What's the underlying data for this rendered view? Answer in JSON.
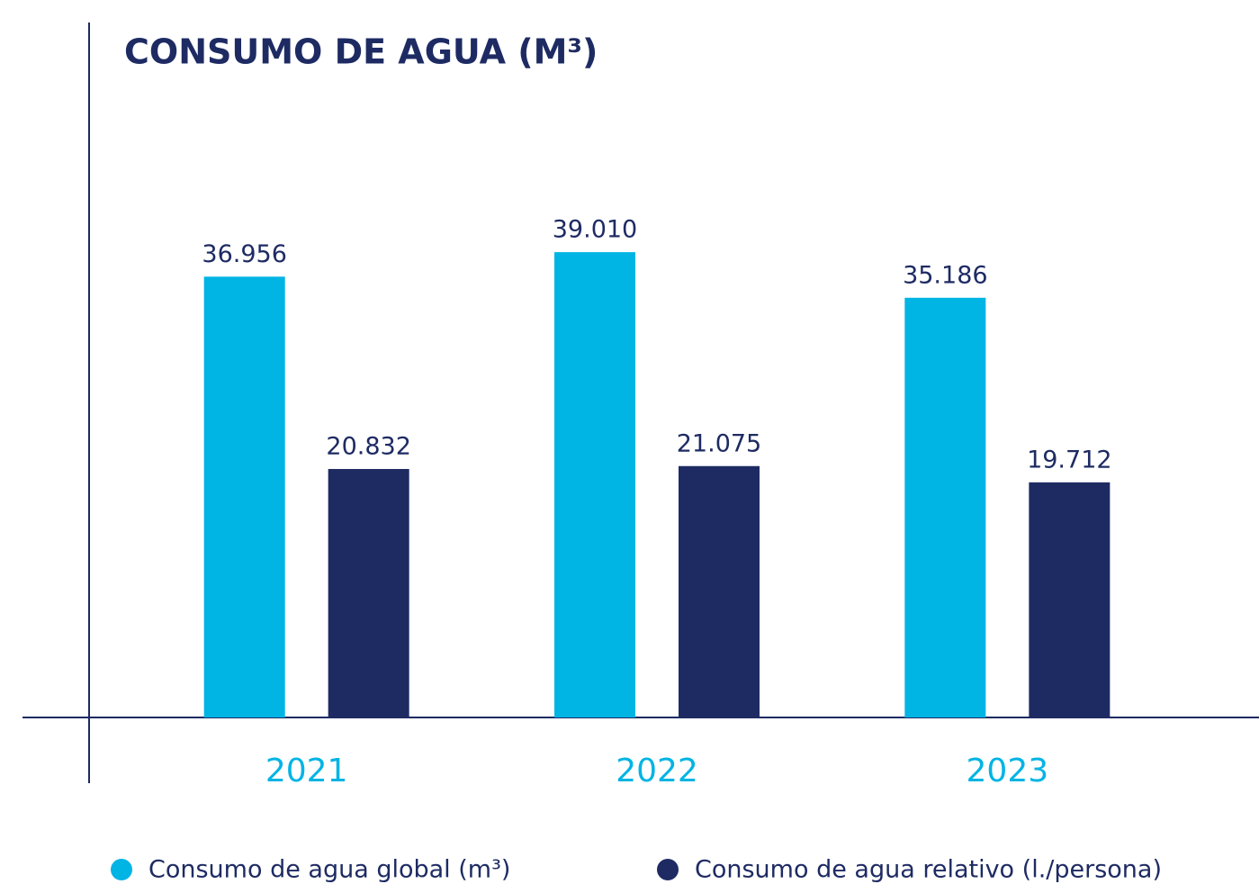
{
  "chart_data": {
    "type": "bar",
    "title": "CONSUMO DE AGUA (M³)",
    "categories": [
      "2021",
      "2022",
      "2023"
    ],
    "series": [
      {
        "name": "Consumo de agua global (m³)",
        "color": "#00b4e4",
        "values": [
          36956,
          39010,
          35186
        ],
        "value_labels": [
          "36.956",
          "39.010",
          "35.186"
        ]
      },
      {
        "name": "Consumo de agua relativo (l./persona)",
        "color": "#1e2b63",
        "values": [
          20832,
          21075,
          19712
        ],
        "value_labels": [
          "20.832",
          "21.075",
          "19.712"
        ]
      }
    ],
    "ylim": [
      0,
      40000
    ]
  }
}
